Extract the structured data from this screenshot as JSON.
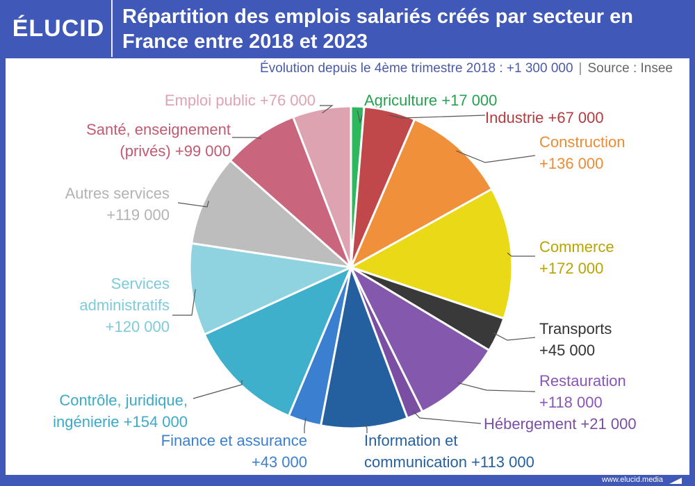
{
  "brand": {
    "logo_text": "ÉLUCID",
    "website": "www.elucid.media"
  },
  "header": {
    "title": "Répartition des emplois salariés créés par secteur en France entre 2018 et 2023"
  },
  "subtitle": {
    "evolution": "Évolution depuis le 4ème trimestre 2018 : +1 300 000",
    "separator": "|",
    "source": "Source : Insee"
  },
  "colors": {
    "brand_blue": "#4059b8"
  },
  "chart_data": {
    "type": "pie",
    "title": "Répartition des emplois salariés créés par secteur en France entre 2018 et 2023",
    "slices": [
      {
        "label_lines": [
          "Agriculture +17 000"
        ],
        "name": "Agriculture",
        "value": 17000,
        "color": "#2eb85c"
      },
      {
        "label_lines": [
          "Industrie +67 000"
        ],
        "name": "Industrie",
        "value": 67000,
        "color": "#c0474a"
      },
      {
        "label_lines": [
          "Construction",
          "+136 000"
        ],
        "name": "Construction",
        "value": 136000,
        "color": "#f0903a"
      },
      {
        "label_lines": [
          "Commerce",
          "+172 000"
        ],
        "name": "Commerce",
        "value": 172000,
        "color": "#ead917"
      },
      {
        "label_lines": [
          "Transports",
          "+45 000"
        ],
        "name": "Transports",
        "value": 45000,
        "color": "#393939"
      },
      {
        "label_lines": [
          "Restauration",
          "+118 000"
        ],
        "name": "Restauration",
        "value": 118000,
        "color": "#8458ad"
      },
      {
        "label_lines": [
          "Hébergement +21 000"
        ],
        "name": "Hébergement",
        "value": 21000,
        "color": "#7a4ea3"
      },
      {
        "label_lines": [
          "Information et",
          "communication +113 000"
        ],
        "name": "Information et communication",
        "value": 113000,
        "color": "#245fa0"
      },
      {
        "label_lines": [
          "Finance et assurance",
          "+43 000"
        ],
        "name": "Finance et assurance",
        "value": 43000,
        "color": "#3a7fd0"
      },
      {
        "label_lines": [
          "Contrôle, juridique,",
          "ingénierie +154 000"
        ],
        "name": "Contrôle, juridique, ingénierie",
        "value": 154000,
        "color": "#3fb0cc"
      },
      {
        "label_lines": [
          "Services",
          "administratifs",
          "+120 000"
        ],
        "name": "Services administratifs",
        "value": 120000,
        "color": "#8fd2e0"
      },
      {
        "label_lines": [
          "Autres services",
          "+119 000"
        ],
        "name": "Autres services",
        "value": 119000,
        "color": "#bdbdbd"
      },
      {
        "label_lines": [
          "Santé, enseignement",
          "(privés) +99 000"
        ],
        "name": "Santé, enseignement (privés)",
        "value": 99000,
        "color": "#c9657d"
      },
      {
        "label_lines": [
          "Emploi public +76 000"
        ],
        "name": "Emploi public",
        "value": 76000,
        "color": "#dea3b1"
      }
    ],
    "label_colors": [
      "#27a04f",
      "#b23c3f",
      "#ec8c32",
      "#b9a400",
      "#333333",
      "#8a55b5",
      "#7a4ea3",
      "#245fa0",
      "#3a7fd0",
      "#3aaac8",
      "#7fcada",
      "#b3b3b3",
      "#c05a72",
      "#dea3b1"
    ],
    "start_angle_deg": 0,
    "direction": "clockwise"
  }
}
